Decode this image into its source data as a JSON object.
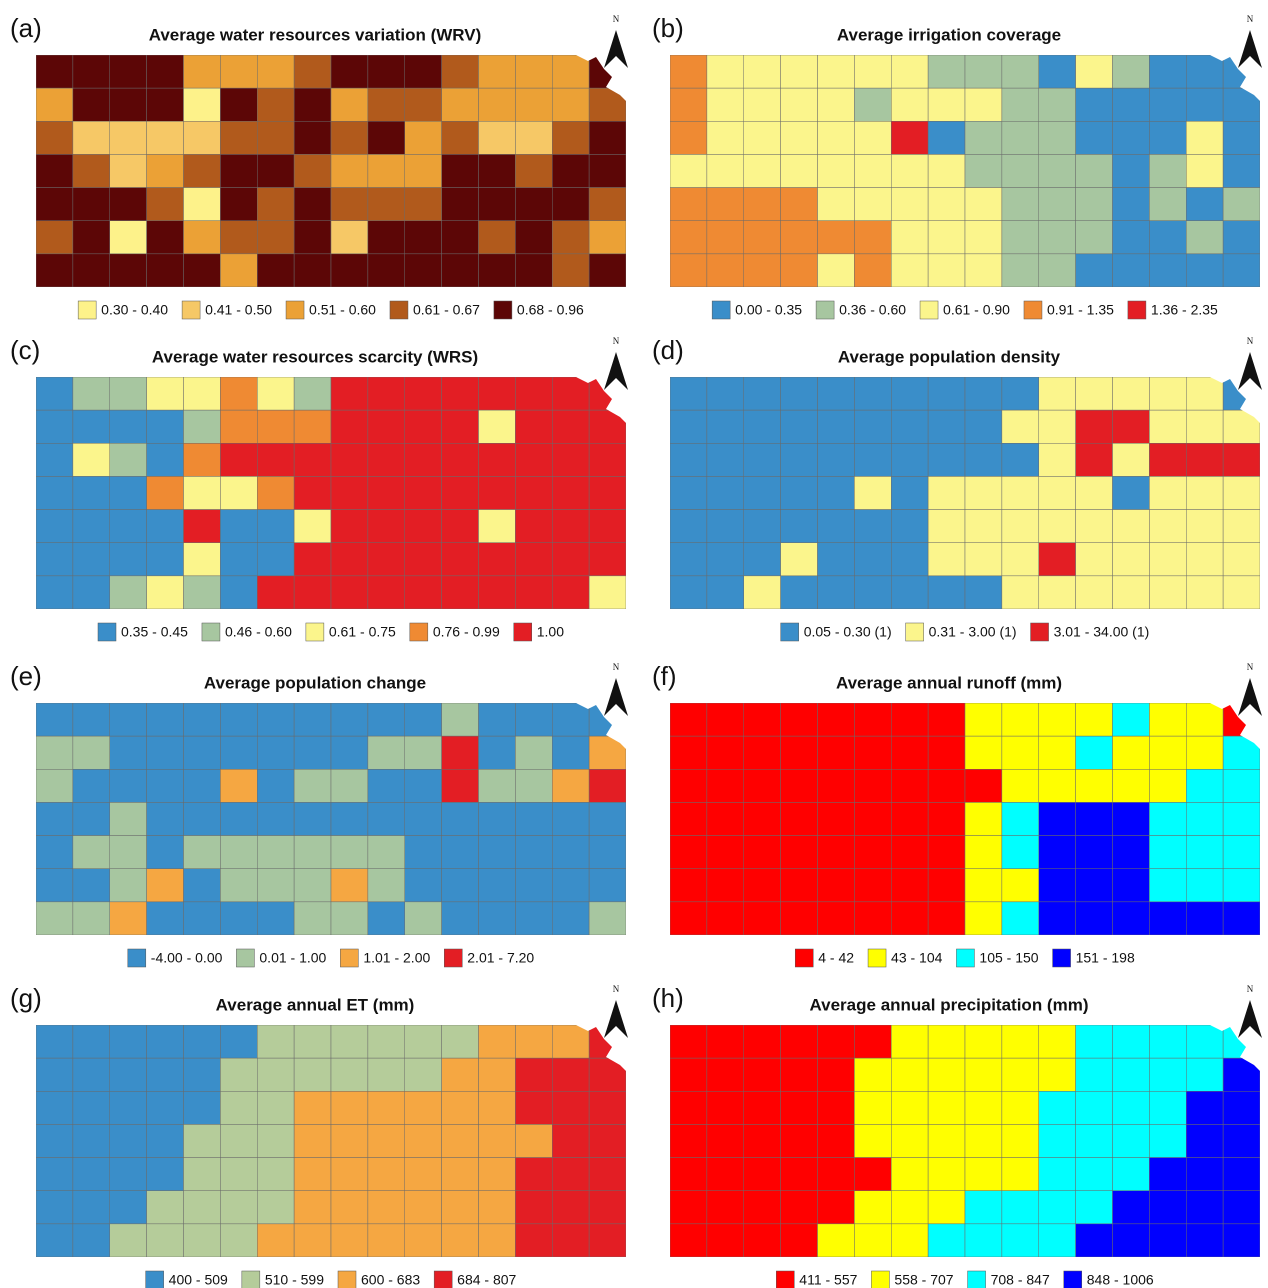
{
  "panels": [
    {
      "label": "(a)",
      "title": "Average water resources variation (WRV)",
      "north": "N",
      "legend": [
        {
          "label": "0.30 - 0.40",
          "color": "#fdf28a"
        },
        {
          "label": "0.41 - 0.50",
          "color": "#f6c866"
        },
        {
          "label": "0.51 - 0.60",
          "color": "#eba136"
        },
        {
          "label": "0.61 - 0.67",
          "color": "#b15a1c"
        },
        {
          "label": "0.68 - 0.96",
          "color": "#5c0606"
        }
      ]
    },
    {
      "label": "(b)",
      "title": "Average irrigation coverage",
      "north": "N",
      "legend": [
        {
          "label": "0.00 - 0.35",
          "color": "#3a8ec9"
        },
        {
          "label": "0.36 - 0.60",
          "color": "#a7c6a0"
        },
        {
          "label": "0.61 - 0.90",
          "color": "#fbf58c"
        },
        {
          "label": "0.91 - 1.35",
          "color": "#ef8a33"
        },
        {
          "label": "1.36 - 2.35",
          "color": "#e31e24"
        }
      ]
    },
    {
      "label": "(c)",
      "title": "Average water resources scarcity (WRS)",
      "north": "N",
      "legend": [
        {
          "label": "0.35 - 0.45",
          "color": "#3a8ec9"
        },
        {
          "label": "0.46 - 0.60",
          "color": "#a7c6a0"
        },
        {
          "label": "0.61 - 0.75",
          "color": "#fbf58c"
        },
        {
          "label": "0.76 - 0.99",
          "color": "#ef8a33"
        },
        {
          "label": "1.00",
          "color": "#e31e24"
        }
      ]
    },
    {
      "label": "(d)",
      "title": "Average population density",
      "north": "N",
      "legend": [
        {
          "label": "0.05 - 0.30 (1)",
          "color": "#3a8ec9"
        },
        {
          "label": "0.31 - 3.00 (1)",
          "color": "#fbf58c"
        },
        {
          "label": "3.01 - 34.00 (1)",
          "color": "#e31e24"
        }
      ]
    },
    {
      "label": "(e)",
      "title": "Average population change",
      "north": "N",
      "legend": [
        {
          "label": "-4.00 - 0.00",
          "color": "#3a8ec9"
        },
        {
          "label": "0.01 - 1.00",
          "color": "#a7c6a0"
        },
        {
          "label": "1.01 - 2.00",
          "color": "#f5a742"
        },
        {
          "label": "2.01 - 7.20",
          "color": "#e31e24"
        }
      ]
    },
    {
      "label": "(f)",
      "title": "Average annual runoff (mm)",
      "north": "N",
      "legend": [
        {
          "label": "4 - 42",
          "color": "#ff0000"
        },
        {
          "label": "43 - 104",
          "color": "#ffff00"
        },
        {
          "label": "105 - 150",
          "color": "#00ffff"
        },
        {
          "label": "151 - 198",
          "color": "#0000ff"
        }
      ]
    },
    {
      "label": "(g)",
      "title": "Average annual ET (mm)",
      "north": "N",
      "legend": [
        {
          "label": "400 - 509",
          "color": "#3a8ec9"
        },
        {
          "label": "510 - 599",
          "color": "#b5cc9a"
        },
        {
          "label": "600 - 683",
          "color": "#f5a742"
        },
        {
          "label": "684 - 807",
          "color": "#e31e24"
        }
      ]
    },
    {
      "label": "(h)",
      "title": "Average annual precipitation (mm)",
      "north": "N",
      "legend": [
        {
          "label": "411 - 557",
          "color": "#ff0000"
        },
        {
          "label": "558 - 707",
          "color": "#ffff00"
        },
        {
          "label": "708 - 847",
          "color": "#00ffff"
        },
        {
          "label": "848 - 1006",
          "color": "#0000ff"
        }
      ]
    }
  ]
}
